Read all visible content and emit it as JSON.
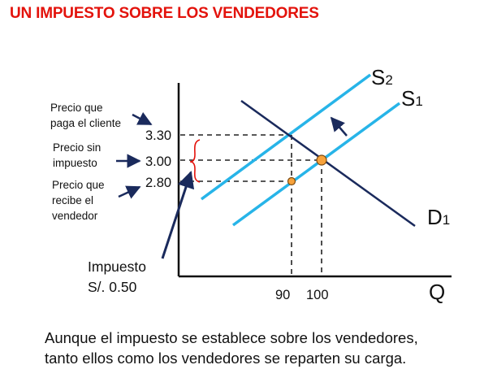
{
  "title": "UN IMPUESTO SOBRE LOS VENDEDORES",
  "labels": {
    "buyer_price": [
      "Precio que",
      "paga el cliente"
    ],
    "no_tax_price": [
      "Precio sin",
      "impuesto"
    ],
    "seller_price": [
      "Precio que",
      "recibe el",
      "vendedor"
    ],
    "tax": [
      "Impuesto",
      "S/. 0.50"
    ]
  },
  "axes": {
    "x_label": "Q",
    "price_ticks": [
      "3.30",
      "3.00",
      "2.80"
    ],
    "quantity_ticks": [
      "90",
      "100"
    ]
  },
  "curves": {
    "s2": {
      "name": "S",
      "sub": "2"
    },
    "s1": {
      "name": "S",
      "sub": "1"
    },
    "d1": {
      "name": "D",
      "sub": "1"
    }
  },
  "caption": [
    "Aunque el impuesto se establece sobre los vendedores,",
    "tanto ellos como los vendedores se reparten su carga."
  ],
  "colors": {
    "title": "#e3120b",
    "supply": "#27b4e8",
    "demand": "#1a2a5c",
    "point": "#f7a23b",
    "brace": "#e3120b"
  }
}
